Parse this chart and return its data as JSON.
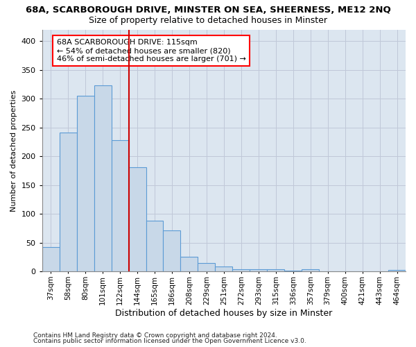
{
  "title1": "68A, SCARBOROUGH DRIVE, MINSTER ON SEA, SHEERNESS, ME12 2NQ",
  "title2": "Size of property relative to detached houses in Minster",
  "xlabel": "Distribution of detached houses by size in Minster",
  "ylabel": "Number of detached properties",
  "footnote1": "Contains HM Land Registry data © Crown copyright and database right 2024.",
  "footnote2": "Contains public sector information licensed under the Open Government Licence v3.0.",
  "annotation_line1": "68A SCARBOROUGH DRIVE: 115sqm",
  "annotation_line2": "← 54% of detached houses are smaller (820)",
  "annotation_line3": "46% of semi-detached houses are larger (701) →",
  "bar_color": "#c8d8e8",
  "bar_edge_color": "#5b9bd5",
  "grid_color": "#c0c8d8",
  "bg_color": "#dce6f0",
  "red_line_color": "#cc0000",
  "bin_labels": [
    "37sqm",
    "58sqm",
    "80sqm",
    "101sqm",
    "122sqm",
    "144sqm",
    "165sqm",
    "186sqm",
    "208sqm",
    "229sqm",
    "251sqm",
    "272sqm",
    "293sqm",
    "315sqm",
    "336sqm",
    "357sqm",
    "379sqm",
    "400sqm",
    "421sqm",
    "443sqm",
    "464sqm"
  ],
  "bar_values": [
    42,
    241,
    305,
    323,
    228,
    181,
    88,
    71,
    26,
    15,
    9,
    4,
    4,
    4,
    1,
    4,
    0,
    0,
    0,
    0,
    3
  ],
  "red_line_bin": 4,
  "ylim": [
    0,
    420
  ],
  "yticks": [
    0,
    50,
    100,
    150,
    200,
    250,
    300,
    350,
    400
  ],
  "title1_fontsize": 9.5,
  "title2_fontsize": 9,
  "xlabel_fontsize": 9,
  "ylabel_fontsize": 8,
  "xtick_fontsize": 7.5,
  "ytick_fontsize": 8,
  "annotation_fontsize": 8,
  "footnote_fontsize": 6.5
}
